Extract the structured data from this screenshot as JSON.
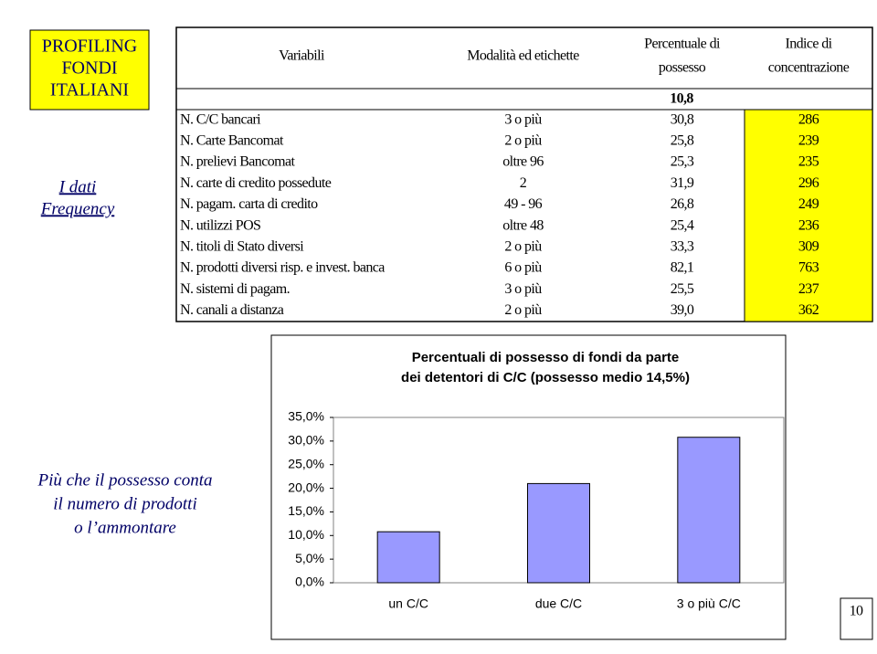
{
  "sidebar": {
    "title": [
      "PROFILING",
      "FONDI",
      "ITALIANI"
    ],
    "subtitle": [
      "I dati",
      "Frequency"
    ],
    "note": [
      "Più che il possesso conta",
      "il numero di prodotti",
      "o l’ammontare"
    ]
  },
  "table": {
    "header": [
      [
        "Variabili"
      ],
      [
        "Modalità ed etichette"
      ],
      [
        "Percentuale di",
        "possesso"
      ],
      [
        "Indice di",
        "concentrazione"
      ]
    ],
    "base": "10,8",
    "rows": [
      [
        "N. C/C bancari",
        "3 o più",
        "30,8",
        "286"
      ],
      [
        "N. Carte Bancomat",
        "2 o più",
        "25,8",
        "239"
      ],
      [
        "N. prelievi Bancomat",
        "oltre 96",
        "25,3",
        "235"
      ],
      [
        "N. carte di credito possedute",
        "2",
        "31,9",
        "296"
      ],
      [
        "N. pagam. carta di credito",
        "49 - 96",
        "26,8",
        "249"
      ],
      [
        "N. utilizzi POS",
        "oltre 48",
        "25,4",
        "236"
      ],
      [
        "N. titoli di Stato diversi",
        "2 o più",
        "33,3",
        "309"
      ],
      [
        "N. prodotti diversi risp. e invest. banca",
        "6 o più",
        "82,1",
        "763"
      ],
      [
        "N. sistemi di pagam.",
        "3 o più",
        "25,5",
        "237"
      ],
      [
        "N. canali a distanza",
        "2 o più",
        "39,0",
        "362"
      ]
    ]
  },
  "chart_data": {
    "type": "bar",
    "title": [
      "Percentuali di possesso di fondi da parte",
      "dei detentori di C/C (possesso medio 14,5%)"
    ],
    "categories": [
      "un C/C",
      "due C/C",
      "3 o più C/C"
    ],
    "values": [
      10.8,
      21,
      30.8
    ],
    "color": "#9999ff",
    "ylim": [
      0,
      35
    ],
    "yticks": [
      {
        "value": 0,
        "label": "0,0%"
      },
      {
        "value": 5,
        "label": "5,0%"
      },
      {
        "value": 10,
        "label": "10,0%"
      },
      {
        "value": 15,
        "label": "15,0%"
      },
      {
        "value": 20,
        "label": "20,0%"
      },
      {
        "value": 25,
        "label": "25,0%"
      },
      {
        "value": 30,
        "label": "30,0%"
      },
      {
        "value": 35,
        "label": "35,0%"
      }
    ]
  },
  "page_number": "10"
}
